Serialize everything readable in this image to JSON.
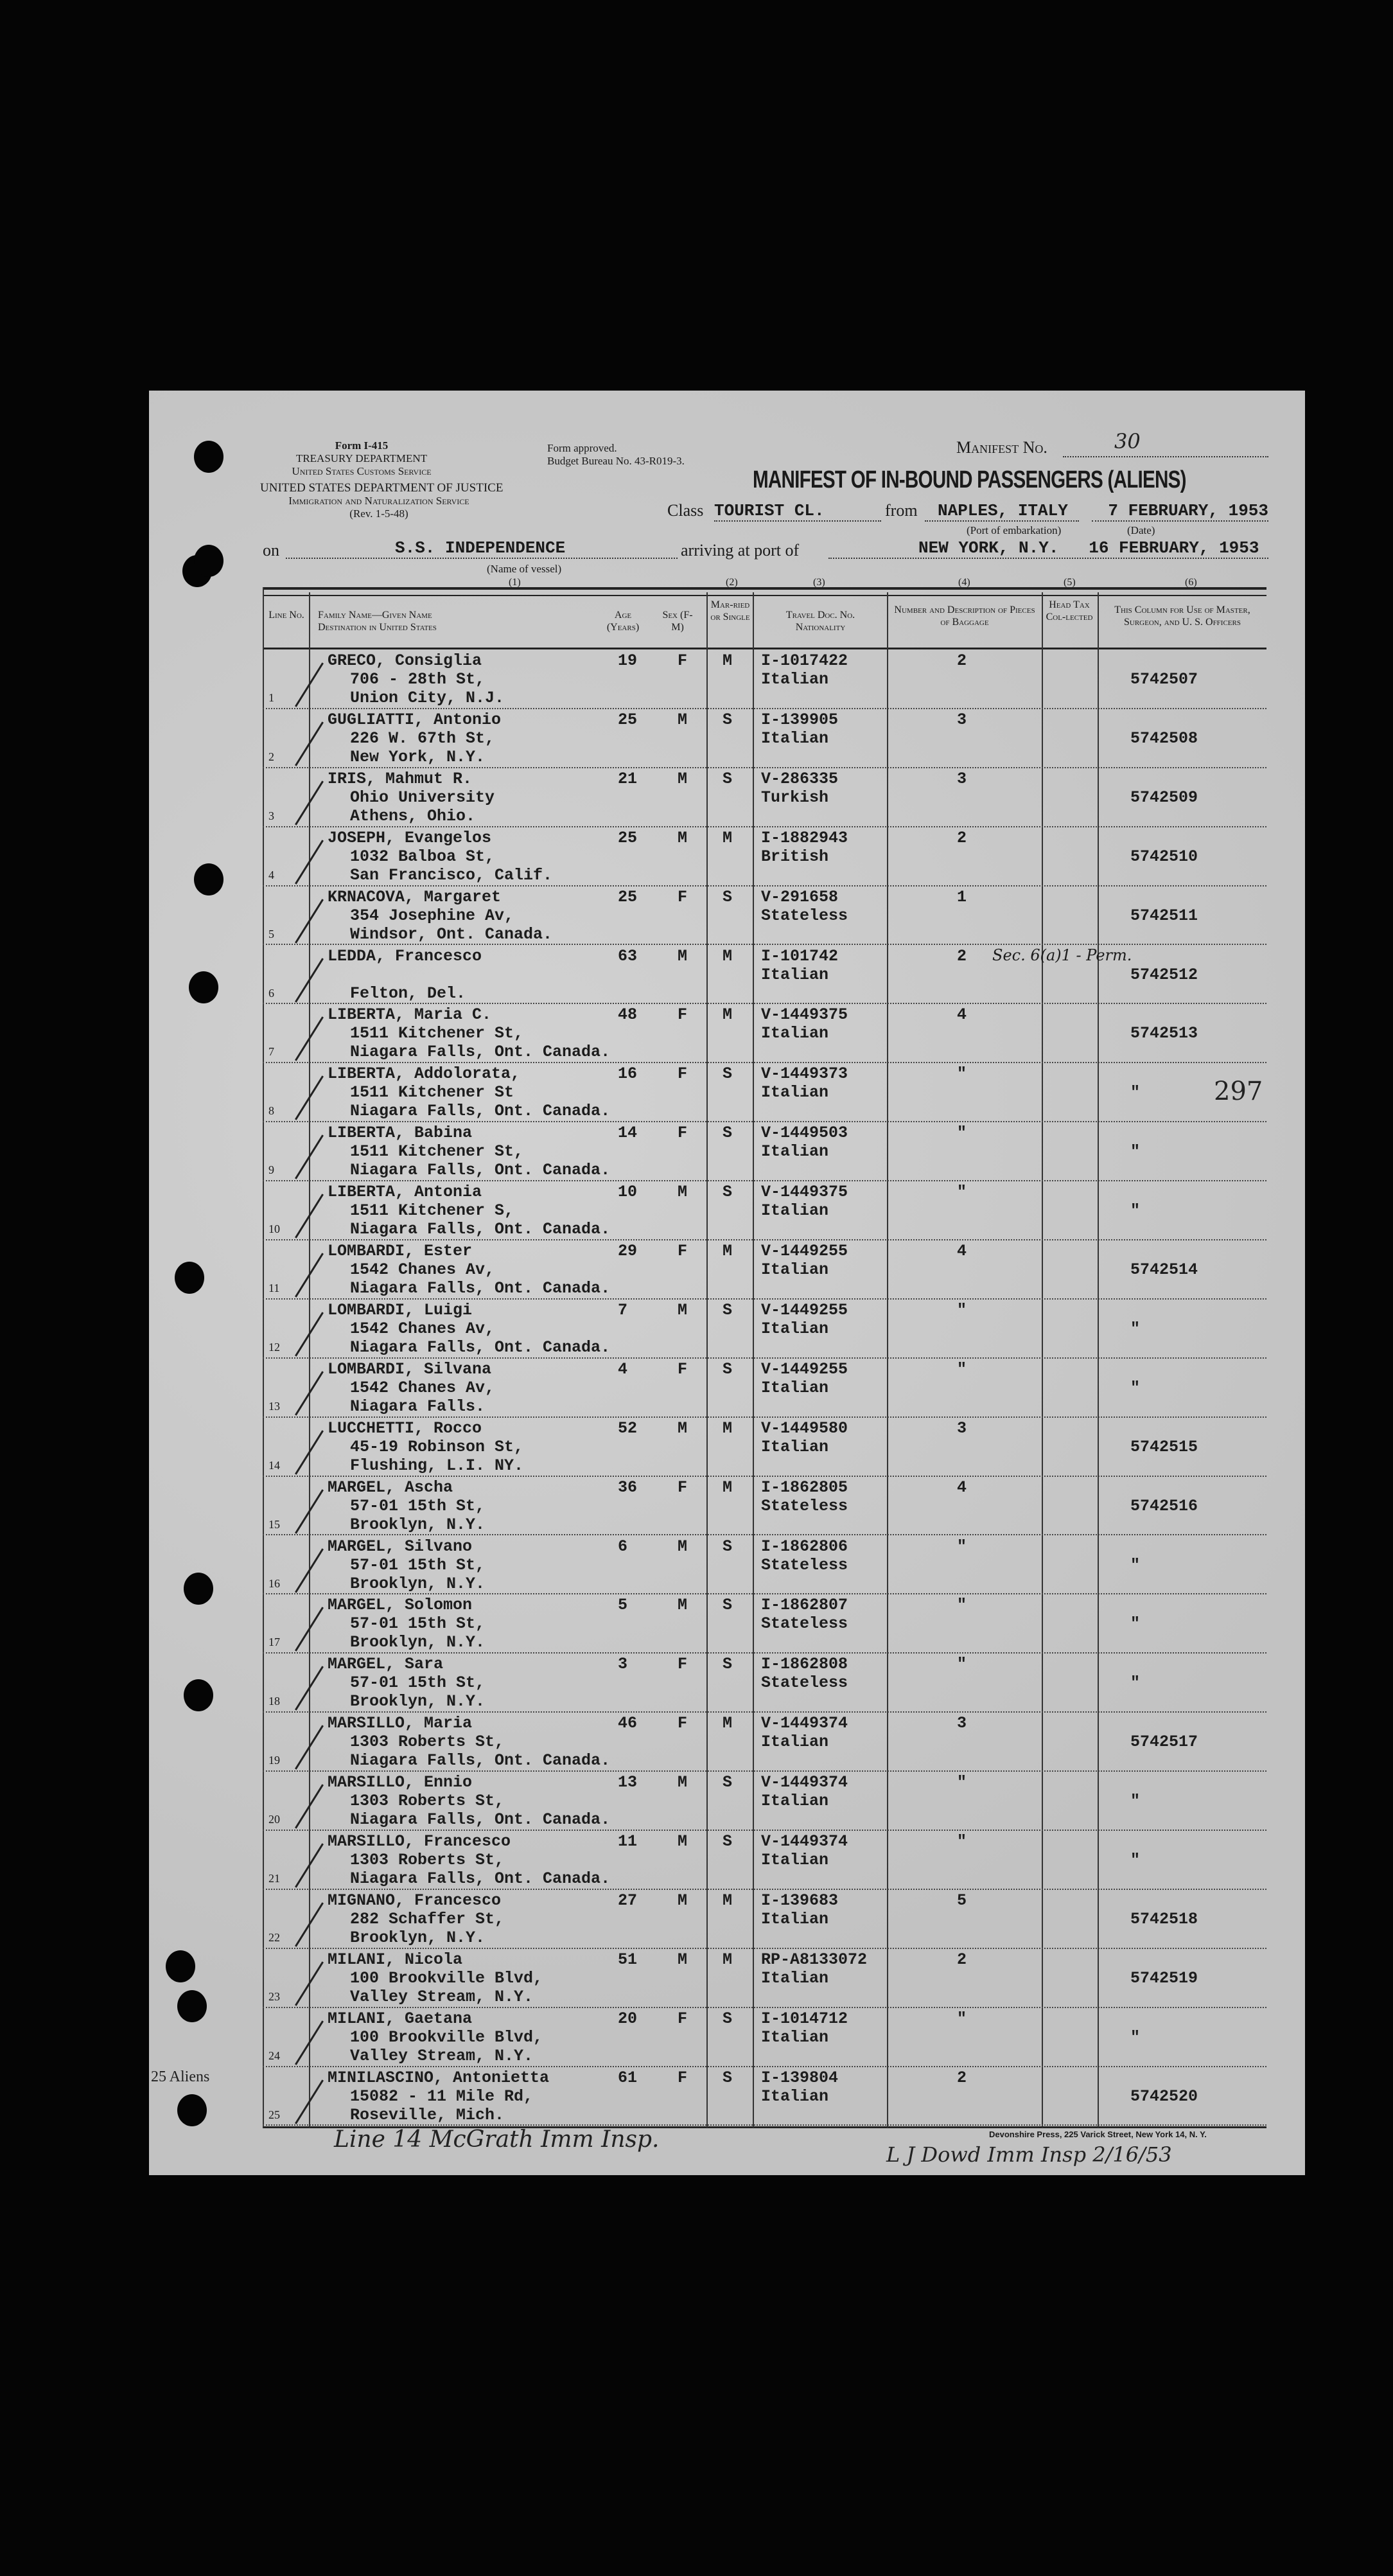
{
  "form": {
    "form_no": "Form I-415",
    "dept1": "TREASURY DEPARTMENT",
    "dept1_sub": "United States Customs Service",
    "dept2": "UNITED STATES DEPARTMENT OF JUSTICE",
    "dept2_sub": "Immigration and Naturalization Service",
    "rev": "(Rev. 1-5-48)",
    "approved": "Form approved.",
    "budget": "Budget Bureau No. 43-R019-3.",
    "manifest_label": "Manifest No.",
    "manifest_no": "30",
    "title": "MANIFEST OF IN-BOUND PASSENGERS (ALIENS)",
    "class_label": "Class",
    "class_value": "TOURIST CL.",
    "from_label": "from",
    "port_embarkation": "NAPLES, ITALY",
    "port_embarkation_label": "(Port of embarkation)",
    "date_departure": "7 FEBRUARY, 1953",
    "date_label": "(Date)",
    "on_label": "on",
    "vessel": "S.S. INDEPENDENCE",
    "vessel_label": "(Name of vessel)",
    "arriving_label": "arriving at port of",
    "arrival_port": "NEW YORK, N.Y.",
    "arrival_date": "16 FEBRUARY, 1953"
  },
  "columns": {
    "numbers": [
      "(1)",
      "(2)",
      "(3)",
      "(4)",
      "(5)",
      "(6)"
    ],
    "line_no": "Line No.",
    "name": "Family Name—Given Name",
    "destination": "Destination in United States",
    "age": "Age (Years)",
    "sex": "Sex (F-M)",
    "marital": "Mar-ried or Single",
    "travel_doc": "Travel Doc. No.",
    "nationality": "Nationality",
    "baggage": "Number and Description of Pieces of Baggage",
    "head_tax": "Head Tax Col-lected",
    "officers": "This Column for Use of Master, Surgeon, and U. S. Officers"
  },
  "rows": [
    {
      "line": "1",
      "name": "GRECO, Consiglia",
      "addr1": "706 - 28th St,",
      "addr2": "Union City, N.J.",
      "age": "19",
      "sex": "F",
      "marital": "M",
      "doc": "I-1017422",
      "nat": "Italian",
      "bag": "2",
      "off": "5742507"
    },
    {
      "line": "2",
      "name": "GUGLIATTI, Antonio",
      "addr1": "226 W. 67th St,",
      "addr2": "New York, N.Y.",
      "age": "25",
      "sex": "M",
      "marital": "S",
      "doc": "I-139905",
      "nat": "Italian",
      "bag": "3",
      "off": "5742508"
    },
    {
      "line": "3",
      "name": "IRIS, Mahmut R.",
      "addr1": "Ohio University",
      "addr2": "Athens, Ohio.",
      "age": "21",
      "sex": "M",
      "marital": "S",
      "doc": "V-286335",
      "nat": "Turkish",
      "bag": "3",
      "off": "5742509"
    },
    {
      "line": "4",
      "name": "JOSEPH, Evangelos",
      "addr1": "1032 Balboa St,",
      "addr2": "San Francisco, Calif.",
      "age": "25",
      "sex": "M",
      "marital": "M",
      "doc": "I-1882943",
      "nat": "British",
      "bag": "2",
      "off": "5742510"
    },
    {
      "line": "5",
      "name": "KRNACOVA, Margaret",
      "addr1": "354 Josephine Av,",
      "addr2": "Windsor, Ont. Canada.",
      "age": "25",
      "sex": "F",
      "marital": "S",
      "doc": "V-291658",
      "nat": "Stateless",
      "bag": "1",
      "off": "5742511"
    },
    {
      "line": "6",
      "name": "LEDDA, Francesco",
      "addr1": "",
      "addr2": "Felton, Del.",
      "age": "63",
      "sex": "M",
      "marital": "M",
      "doc": "I-101742",
      "nat": "Italian",
      "bag": "2",
      "off": "5742512",
      "note": "Sec. 6(a)1 - Perm."
    },
    {
      "line": "7",
      "name": "LIBERTA, Maria C.",
      "addr1": "1511 Kitchener St,",
      "addr2": "Niagara Falls, Ont. Canada.",
      "age": "48",
      "sex": "F",
      "marital": "M",
      "doc": "V-1449375",
      "nat": "Italian",
      "bag": "4",
      "off": "5742513"
    },
    {
      "line": "8",
      "name": "LIBERTA, Addolorata,",
      "addr1": "1511 Kitchener St",
      "addr2": "Niagara Falls, Ont. Canada.",
      "age": "16",
      "sex": "F",
      "marital": "S",
      "doc": "V-1449373",
      "nat": "Italian",
      "bag": "\"",
      "off": "\""
    },
    {
      "line": "9",
      "name": "LIBERTA, Babina",
      "addr1": "1511 Kitchener St,",
      "addr2": "Niagara Falls, Ont. Canada.",
      "age": "14",
      "sex": "F",
      "marital": "S",
      "doc": "V-1449503",
      "nat": "Italian",
      "bag": "\"",
      "off": "\""
    },
    {
      "line": "10",
      "name": "LIBERTA, Antonia",
      "addr1": "1511 Kitchener S,",
      "addr2": "Niagara Falls, Ont. Canada.",
      "age": "10",
      "sex": "M",
      "marital": "S",
      "doc": "V-1449375",
      "nat": "Italian",
      "bag": "\"",
      "off": "\""
    },
    {
      "line": "11",
      "name": "LOMBARDI, Ester",
      "addr1": "1542 Chanes Av,",
      "addr2": "Niagara Falls, Ont. Canada.",
      "age": "29",
      "sex": "F",
      "marital": "M",
      "doc": "V-1449255",
      "nat": "Italian",
      "bag": "4",
      "off": "5742514"
    },
    {
      "line": "12",
      "name": "LOMBARDI, Luigi",
      "addr1": "1542 Chanes Av,",
      "addr2": "Niagara Falls, Ont. Canada.",
      "age": "7",
      "sex": "M",
      "marital": "S",
      "doc": "V-1449255",
      "nat": "Italian",
      "bag": "\"",
      "off": "\""
    },
    {
      "line": "13",
      "name": "LOMBARDI, Silvana",
      "addr1": "1542 Chanes Av,",
      "addr2": "Niagara Falls.",
      "age": "4",
      "sex": "F",
      "marital": "S",
      "doc": "V-1449255",
      "nat": "Italian",
      "bag": "\"",
      "off": "\""
    },
    {
      "line": "14",
      "name": "LUCCHETTI, Rocco",
      "addr1": "45-19 Robinson St,",
      "addr2": "Flushing, L.I. NY.",
      "age": "52",
      "sex": "M",
      "marital": "M",
      "doc": "V-1449580",
      "nat": "Italian",
      "bag": "3",
      "off": "5742515"
    },
    {
      "line": "15",
      "name": "MARGEL, Ascha",
      "addr1": "57-01 15th St,",
      "addr2": "Brooklyn, N.Y.",
      "age": "36",
      "sex": "F",
      "marital": "M",
      "doc": "I-1862805",
      "nat": "Stateless",
      "bag": "4",
      "off": "5742516"
    },
    {
      "line": "16",
      "name": "MARGEL, Silvano",
      "addr1": "57-01 15th St,",
      "addr2": "Brooklyn, N.Y.",
      "age": "6",
      "sex": "M",
      "marital": "S",
      "doc": "I-1862806",
      "nat": "Stateless",
      "bag": "\"",
      "off": "\""
    },
    {
      "line": "17",
      "name": "MARGEL, Solomon",
      "addr1": "57-01 15th St,",
      "addr2": "Brooklyn, N.Y.",
      "age": "5",
      "sex": "M",
      "marital": "S",
      "doc": "I-1862807",
      "nat": "Stateless",
      "bag": "\"",
      "off": "\""
    },
    {
      "line": "18",
      "name": "MARGEL, Sara",
      "addr1": "57-01 15th St,",
      "addr2": "Brooklyn, N.Y.",
      "age": "3",
      "sex": "F",
      "marital": "S",
      "doc": "I-1862808",
      "nat": "Stateless",
      "bag": "\"",
      "off": "\""
    },
    {
      "line": "19",
      "name": "MARSILLO, Maria",
      "addr1": "1303 Roberts St,",
      "addr2": "Niagara Falls, Ont. Canada.",
      "age": "46",
      "sex": "F",
      "marital": "M",
      "doc": "V-1449374",
      "nat": "Italian",
      "bag": "3",
      "off": "5742517"
    },
    {
      "line": "20",
      "name": "MARSILLO, Ennio",
      "addr1": "1303 Roberts St,",
      "addr2": "Niagara Falls, Ont. Canada.",
      "age": "13",
      "sex": "M",
      "marital": "S",
      "doc": "V-1449374",
      "nat": "Italian",
      "bag": "\"",
      "off": "\""
    },
    {
      "line": "21",
      "name": "MARSILLO, Francesco",
      "addr1": "1303 Roberts St,",
      "addr2": "Niagara Falls, Ont. Canada.",
      "age": "11",
      "sex": "M",
      "marital": "S",
      "doc": "V-1449374",
      "nat": "Italian",
      "bag": "\"",
      "off": "\""
    },
    {
      "line": "22",
      "name": "MIGNANO, Francesco",
      "addr1": "282 Schaffer St,",
      "addr2": "Brooklyn, N.Y.",
      "age": "27",
      "sex": "M",
      "marital": "M",
      "doc": "I-139683",
      "nat": "Italian",
      "bag": "5",
      "off": "5742518"
    },
    {
      "line": "23",
      "name": "MILANI, Nicola",
      "addr1": "100 Brookville Blvd,",
      "addr2": "Valley Stream, N.Y.",
      "age": "51",
      "sex": "M",
      "marital": "M",
      "doc": "RP-A8133072",
      "nat": "Italian",
      "bag": "2",
      "off": "5742519"
    },
    {
      "line": "24",
      "name": "MILANI, Gaetana",
      "addr1": "100 Brookville Blvd,",
      "addr2": "Valley Stream, N.Y.",
      "age": "20",
      "sex": "F",
      "marital": "S",
      "doc": "I-1014712",
      "nat": "Italian",
      "bag": "\"",
      "off": "\""
    },
    {
      "line": "25",
      "name": "MINILASCINO, Antonietta",
      "addr1": "15082 - 11 Mile Rd,",
      "addr2": "Roseville, Mich.",
      "age": "61",
      "sex": "F",
      "marital": "S",
      "doc": "I-139804",
      "nat": "Italian",
      "bag": "2",
      "off": "5742520"
    }
  ],
  "annotations": {
    "total_aliens": "25 Aliens",
    "page_number": "297",
    "signature_left": "Line 14 McGrath Imm Insp.",
    "signature_right": "L J Dowd Imm Insp 2/16/53"
  },
  "printer": "Devonshire Press, 225 Varick Street, New York 14, N. Y."
}
